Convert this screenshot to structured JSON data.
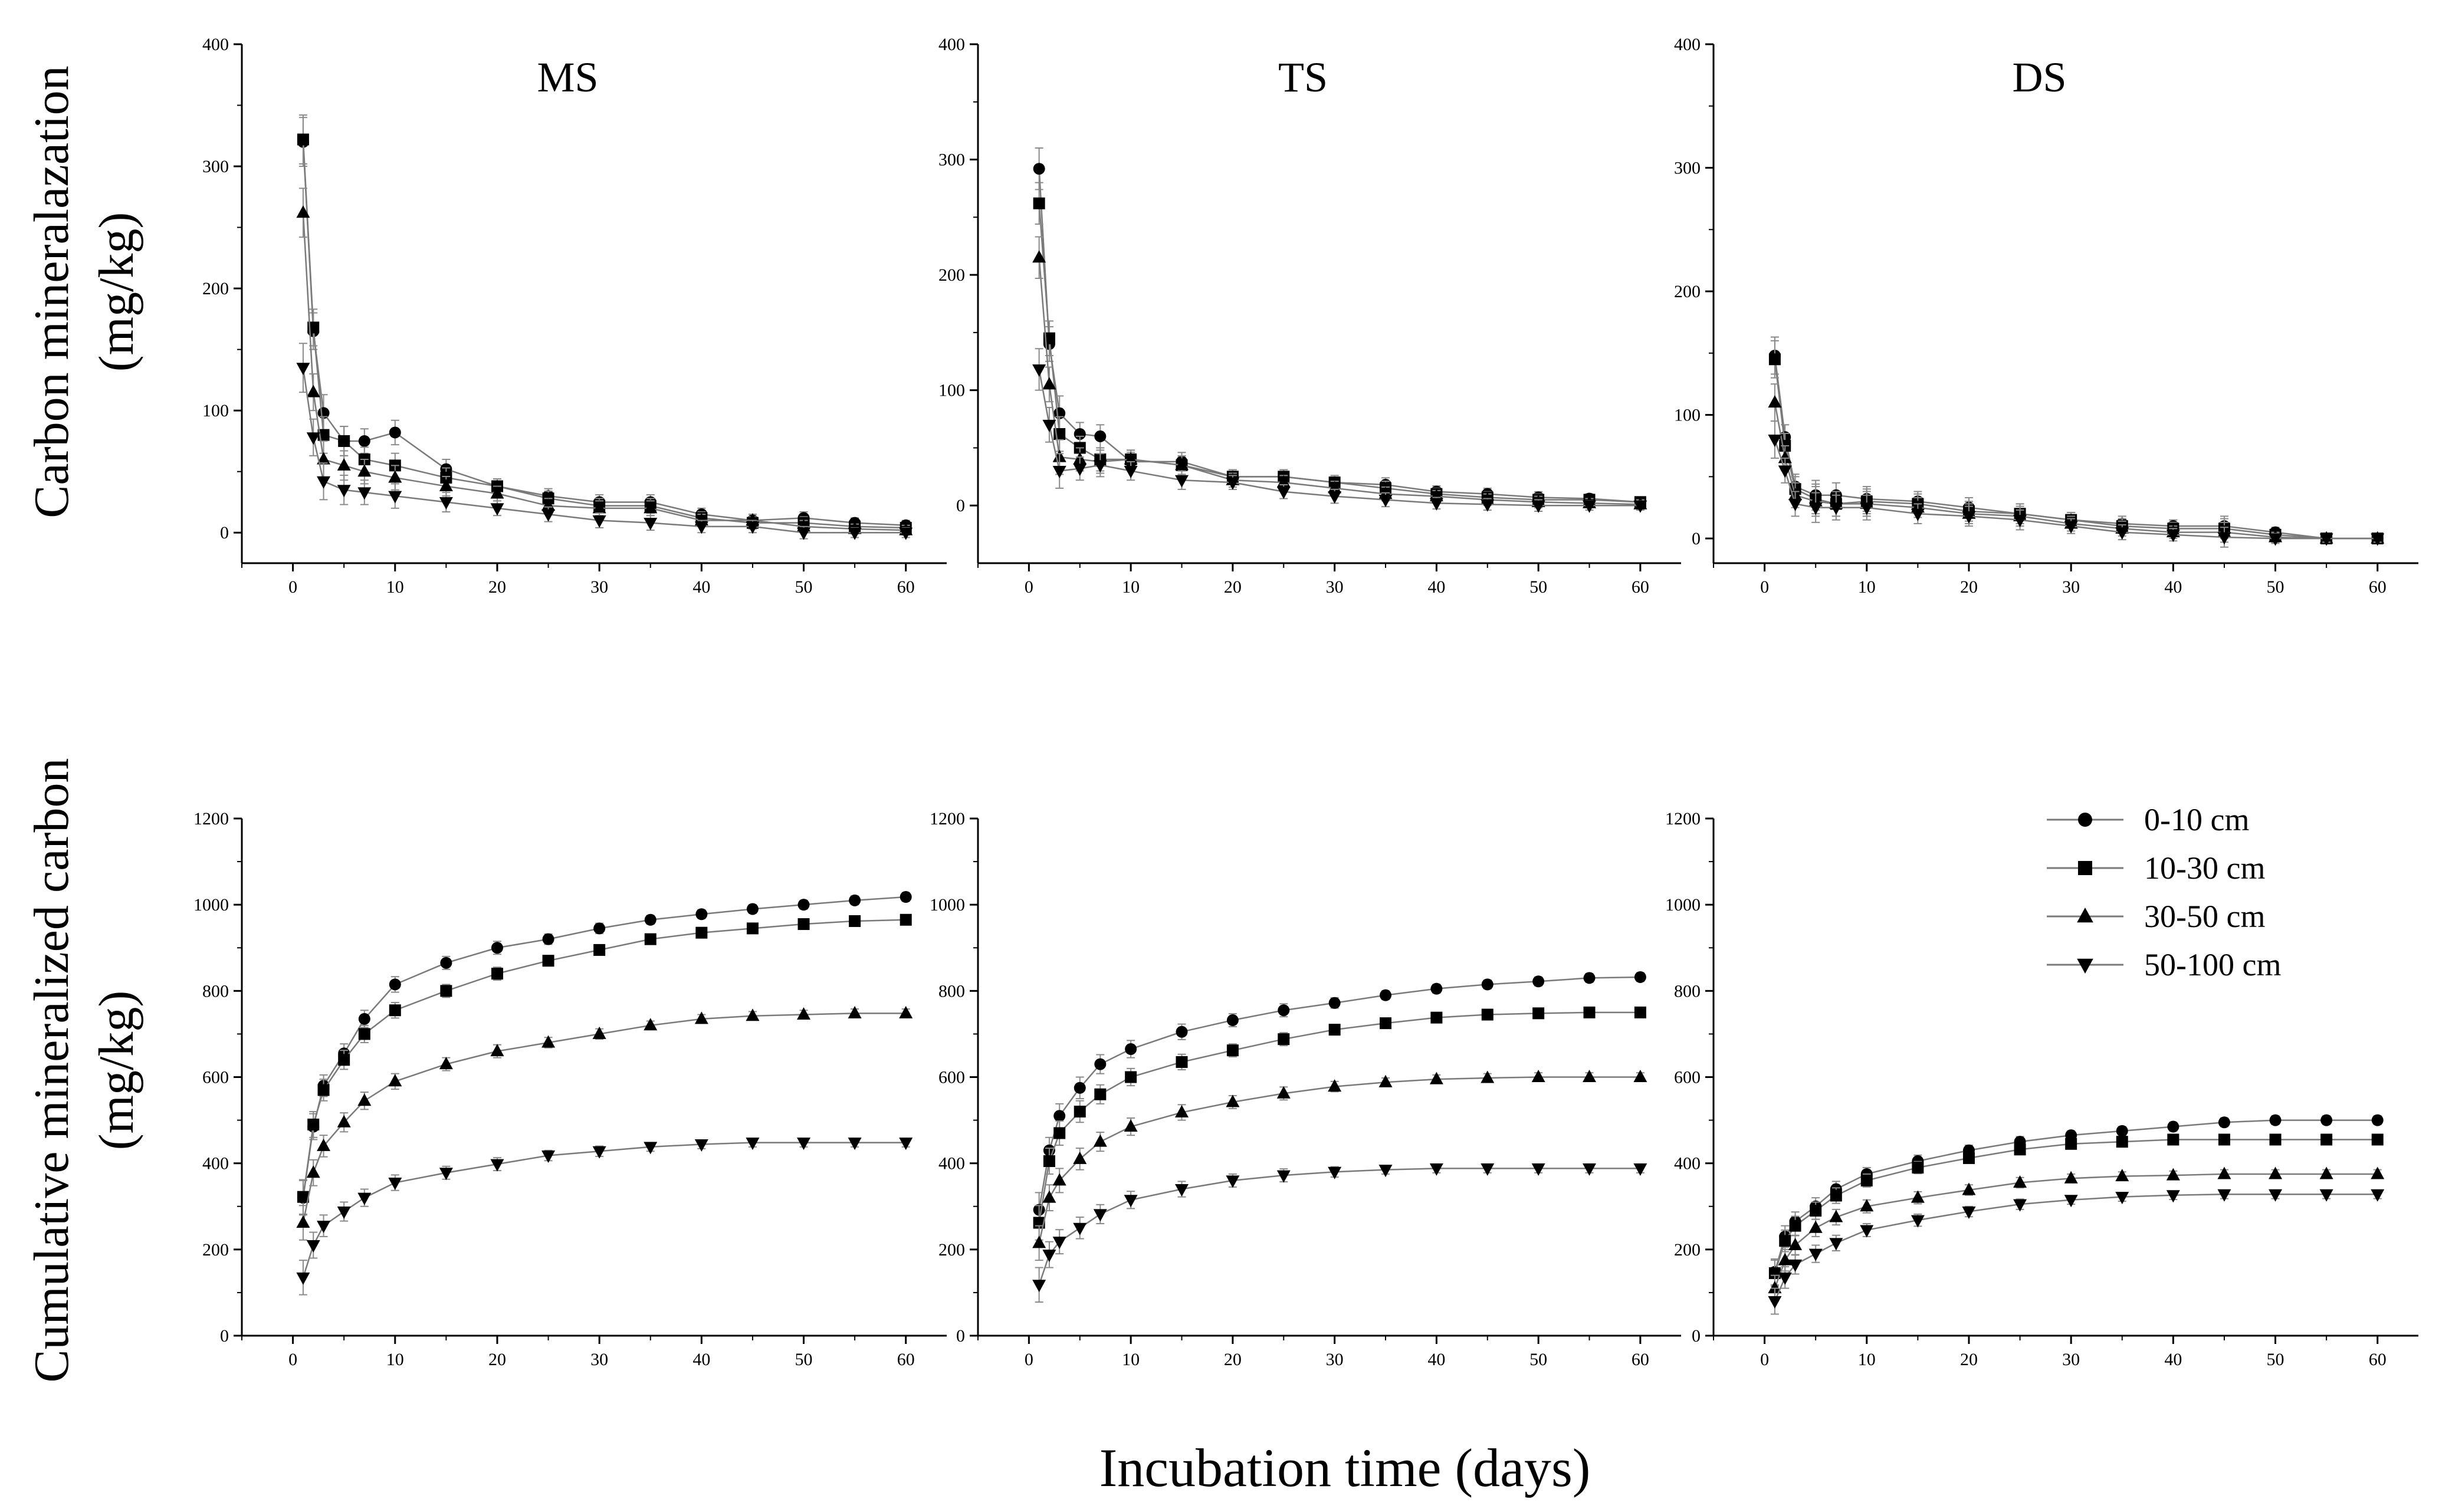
{
  "figure": {
    "xlabel": "Incubation time (days)",
    "ylabel_top_line1": "Carbon mineralazation",
    "ylabel_top_line2": "(mg/kg)",
    "ylabel_bottom_line1": "Cumulative mineralized carbon",
    "ylabel_bottom_line2": "(mg/kg)",
    "line_color": "#7a7a7a",
    "marker_color": "#000000"
  },
  "legend": {
    "items": [
      {
        "label": "0-10 cm",
        "marker": "circle"
      },
      {
        "label": "10-30 cm",
        "marker": "square"
      },
      {
        "label": "30-50 cm",
        "marker": "triangle-up"
      },
      {
        "label": "50-100 cm",
        "marker": "triangle-down"
      }
    ]
  },
  "chart_data": [
    {
      "type": "line",
      "title": "MS",
      "row": "rate",
      "xlim": [
        -5,
        64
      ],
      "ylim": [
        -25,
        400
      ],
      "xticks": [
        "0",
        "10",
        "20",
        "30",
        "40",
        "50",
        "60"
      ],
      "yticks": [
        "0",
        "100",
        "200",
        "300",
        "400"
      ],
      "x": [
        1,
        2,
        3,
        5,
        7,
        10,
        15,
        20,
        25,
        30,
        35,
        40,
        45,
        50,
        55,
        60
      ],
      "series": [
        {
          "name": "0-10 cm",
          "values": [
            320,
            165,
            98,
            75,
            75,
            82,
            52,
            38,
            30,
            25,
            25,
            15,
            10,
            12,
            8,
            6
          ]
        },
        {
          "name": "10-30 cm",
          "values": [
            322,
            168,
            80,
            75,
            60,
            55,
            45,
            38,
            28,
            22,
            22,
            12,
            8,
            8,
            5,
            4
          ]
        },
        {
          "name": "30-50 cm",
          "values": [
            262,
            115,
            60,
            55,
            50,
            45,
            38,
            32,
            22,
            20,
            20,
            10,
            10,
            5,
            3,
            2
          ]
        },
        {
          "name": "50-100 cm",
          "values": [
            135,
            78,
            42,
            35,
            33,
            30,
            25,
            20,
            15,
            10,
            8,
            5,
            5,
            0,
            0,
            0
          ]
        }
      ],
      "error": [
        20,
        15,
        15,
        12,
        10,
        10,
        8,
        6,
        6,
        6,
        6,
        5,
        5,
        5,
        4,
        4
      ]
    },
    {
      "type": "line",
      "title": "TS",
      "row": "rate",
      "xlim": [
        -5,
        64
      ],
      "ylim": [
        -50,
        400
      ],
      "xticks": [
        "0",
        "10",
        "20",
        "30",
        "40",
        "50",
        "60"
      ],
      "yticks": [
        "0",
        "100",
        "200",
        "300",
        "400"
      ],
      "x": [
        1,
        2,
        3,
        5,
        7,
        10,
        15,
        20,
        25,
        30,
        35,
        40,
        45,
        50,
        55,
        60
      ],
      "series": [
        {
          "name": "0-10 cm",
          "values": [
            292,
            140,
            80,
            62,
            60,
            38,
            38,
            25,
            25,
            20,
            18,
            12,
            10,
            7,
            6,
            3
          ]
        },
        {
          "name": "10-30 cm",
          "values": [
            262,
            145,
            62,
            50,
            40,
            40,
            35,
            25,
            25,
            20,
            15,
            10,
            7,
            5,
            5,
            3
          ]
        },
        {
          "name": "30-50 cm",
          "values": [
            215,
            105,
            42,
            40,
            38,
            40,
            35,
            22,
            20,
            15,
            10,
            8,
            5,
            3,
            2,
            1
          ]
        },
        {
          "name": "50-100 cm",
          "values": [
            118,
            70,
            30,
            32,
            35,
            30,
            22,
            20,
            12,
            8,
            5,
            2,
            1,
            0,
            0,
            0
          ]
        }
      ],
      "error": [
        18,
        15,
        15,
        10,
        10,
        8,
        8,
        6,
        6,
        6,
        6,
        5,
        5,
        5,
        4,
        4
      ]
    },
    {
      "type": "line",
      "title": "DS",
      "row": "rate",
      "xlim": [
        -5,
        64
      ],
      "ylim": [
        -20,
        400
      ],
      "xticks": [
        "0",
        "10",
        "20",
        "30",
        "40",
        "50",
        "60"
      ],
      "yticks": [
        "0",
        "100",
        "200",
        "300",
        "400"
      ],
      "x": [
        1,
        2,
        3,
        5,
        7,
        10,
        15,
        20,
        25,
        30,
        35,
        40,
        45,
        50,
        55,
        60
      ],
      "series": [
        {
          "name": "0-10 cm",
          "values": [
            148,
            82,
            42,
            35,
            35,
            32,
            30,
            25,
            20,
            15,
            12,
            10,
            10,
            5,
            0,
            0
          ]
        },
        {
          "name": "10-30 cm",
          "values": [
            145,
            75,
            40,
            32,
            28,
            30,
            28,
            22,
            20,
            15,
            10,
            8,
            8,
            3,
            0,
            0
          ]
        },
        {
          "name": "30-50 cm",
          "values": [
            110,
            65,
            35,
            30,
            28,
            28,
            25,
            20,
            18,
            12,
            8,
            5,
            5,
            1,
            0,
            0
          ]
        },
        {
          "name": "50-100 cm",
          "values": [
            80,
            55,
            28,
            25,
            25,
            25,
            20,
            18,
            15,
            10,
            5,
            3,
            1,
            0,
            0,
            0
          ]
        }
      ],
      "error": [
        15,
        10,
        10,
        12,
        10,
        10,
        8,
        8,
        8,
        6,
        6,
        5,
        8,
        4,
        3,
        3
      ]
    },
    {
      "type": "line",
      "title": "",
      "row": "cumulative",
      "xlim": [
        -5,
        64
      ],
      "ylim": [
        0,
        1200
      ],
      "xticks": [
        "0",
        "10",
        "20",
        "30",
        "40",
        "50",
        "60"
      ],
      "yticks": [
        "0",
        "200",
        "400",
        "600",
        "800",
        "1000",
        "1200"
      ],
      "x": [
        1,
        2,
        3,
        5,
        7,
        10,
        15,
        20,
        25,
        30,
        35,
        40,
        45,
        50,
        55,
        60
      ],
      "series": [
        {
          "name": "0-10 cm",
          "values": [
            320,
            485,
            580,
            655,
            735,
            815,
            865,
            900,
            920,
            945,
            965,
            978,
            990,
            1000,
            1010,
            1018
          ]
        },
        {
          "name": "10-30 cm",
          "values": [
            322,
            490,
            570,
            640,
            700,
            755,
            800,
            840,
            870,
            895,
            920,
            935,
            945,
            955,
            962,
            965
          ]
        },
        {
          "name": "30-50 cm",
          "values": [
            262,
            378,
            440,
            495,
            545,
            590,
            630,
            660,
            680,
            700,
            720,
            735,
            742,
            745,
            748,
            748
          ]
        },
        {
          "name": "50-100 cm",
          "values": [
            135,
            210,
            255,
            288,
            320,
            355,
            378,
            398,
            418,
            428,
            438,
            444,
            448,
            448,
            448,
            448
          ]
        }
      ],
      "error": [
        40,
        30,
        25,
        22,
        20,
        18,
        15,
        15,
        12,
        12,
        10,
        10,
        10,
        10,
        10,
        10
      ]
    },
    {
      "type": "line",
      "title": "",
      "row": "cumulative",
      "xlim": [
        -5,
        64
      ],
      "ylim": [
        0,
        1200
      ],
      "xticks": [
        "0",
        "10",
        "20",
        "30",
        "40",
        "50",
        "60"
      ],
      "yticks": [
        "0",
        "200",
        "400",
        "600",
        "800",
        "1000",
        "1200"
      ],
      "x": [
        1,
        2,
        3,
        5,
        7,
        10,
        15,
        20,
        25,
        30,
        35,
        40,
        45,
        50,
        55,
        60
      ],
      "series": [
        {
          "name": "0-10 cm",
          "values": [
            292,
            430,
            510,
            575,
            630,
            665,
            705,
            732,
            755,
            772,
            790,
            805,
            815,
            822,
            830,
            832
          ]
        },
        {
          "name": "10-30 cm",
          "values": [
            262,
            405,
            470,
            520,
            560,
            600,
            635,
            662,
            688,
            710,
            725,
            738,
            745,
            748,
            750,
            750
          ]
        },
        {
          "name": "30-50 cm",
          "values": [
            215,
            320,
            360,
            410,
            450,
            485,
            518,
            542,
            562,
            578,
            588,
            595,
            598,
            600,
            600,
            600
          ]
        },
        {
          "name": "50-100 cm",
          "values": [
            118,
            188,
            218,
            250,
            282,
            315,
            340,
            360,
            372,
            380,
            385,
            388,
            388,
            388,
            388,
            388
          ]
        }
      ],
      "error": [
        40,
        30,
        28,
        25,
        22,
        20,
        18,
        15,
        15,
        12,
        10,
        10,
        10,
        10,
        10,
        10
      ]
    },
    {
      "type": "line",
      "title": "",
      "row": "cumulative",
      "xlim": [
        -5,
        64
      ],
      "ylim": [
        0,
        1200
      ],
      "xticks": [
        "0",
        "10",
        "20",
        "30",
        "40",
        "50",
        "60"
      ],
      "yticks": [
        "0",
        "200",
        "400",
        "600",
        "800",
        "1000",
        "1200"
      ],
      "x": [
        1,
        2,
        3,
        5,
        7,
        10,
        15,
        20,
        25,
        30,
        35,
        40,
        45,
        50,
        55,
        60
      ],
      "series": [
        {
          "name": "0-10 cm",
          "values": [
            148,
            230,
            265,
            300,
            340,
            375,
            405,
            430,
            450,
            465,
            475,
            485,
            495,
            500,
            500,
            500
          ]
        },
        {
          "name": "10-30 cm",
          "values": [
            145,
            220,
            255,
            290,
            325,
            360,
            390,
            412,
            432,
            445,
            450,
            455,
            455,
            455,
            455,
            455
          ]
        },
        {
          "name": "30-50 cm",
          "values": [
            110,
            175,
            210,
            250,
            275,
            300,
            320,
            338,
            355,
            365,
            370,
            372,
            375,
            375,
            375,
            375
          ]
        },
        {
          "name": "50-100 cm",
          "values": [
            80,
            135,
            165,
            190,
            215,
            245,
            268,
            288,
            305,
            315,
            322,
            326,
            328,
            328,
            328,
            328
          ]
        }
      ],
      "error": [
        30,
        25,
        22,
        20,
        18,
        15,
        14,
        12,
        12,
        10,
        10,
        10,
        10,
        10,
        10,
        10
      ]
    }
  ]
}
